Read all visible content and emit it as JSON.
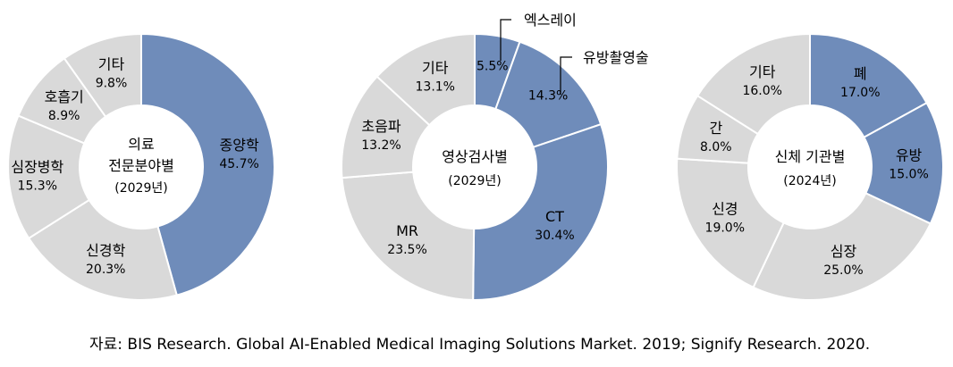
{
  "colors": {
    "highlight": "#6f8cba",
    "other": "#d9d9d9",
    "separator": "#ffffff"
  },
  "chart_data": [
    {
      "type": "pie",
      "variant": "donut",
      "title": [
        "의료",
        "전문분야별",
        "(2029년)"
      ],
      "slices": [
        {
          "label": "종양학",
          "value": 45.7,
          "display": "45.7%",
          "highlight": true
        },
        {
          "label": "신경학",
          "value": 20.3,
          "display": "20.3%",
          "highlight": false
        },
        {
          "label": "심장병학",
          "value": 15.3,
          "display": "15.3%",
          "highlight": false
        },
        {
          "label": "호흡기",
          "value": 8.9,
          "display": "8.9%",
          "highlight": false
        },
        {
          "label": "기타",
          "value": 9.8,
          "display": "9.8%",
          "highlight": false
        }
      ]
    },
    {
      "type": "pie",
      "variant": "donut",
      "title": [
        "영상검사별",
        "(2029년)"
      ],
      "slices": [
        {
          "label": "엑스레이",
          "value": 5.5,
          "display": "5.5%",
          "highlight": true
        },
        {
          "label": "유방촬영술",
          "value": 14.3,
          "display": "14.3%",
          "highlight": true
        },
        {
          "label": "CT",
          "value": 30.4,
          "display": "30.4%",
          "highlight": true
        },
        {
          "label": "MR",
          "value": 23.5,
          "display": "23.5%",
          "highlight": false
        },
        {
          "label": "초음파",
          "value": 13.2,
          "display": "13.2%",
          "highlight": false
        },
        {
          "label": "기타",
          "value": 13.1,
          "display": "13.1%",
          "highlight": false
        }
      ]
    },
    {
      "type": "pie",
      "variant": "donut",
      "title": [
        "신체 기관별",
        "(2024년)"
      ],
      "slices": [
        {
          "label": "폐",
          "value": 17.0,
          "display": "17.0%",
          "highlight": true
        },
        {
          "label": "유방",
          "value": 15.0,
          "display": "15.0%",
          "highlight": true
        },
        {
          "label": "심장",
          "value": 25.0,
          "display": "25.0%",
          "highlight": false
        },
        {
          "label": "신경",
          "value": 19.0,
          "display": "19.0%",
          "highlight": false
        },
        {
          "label": "간",
          "value": 8.0,
          "display": "8.0%",
          "highlight": false
        },
        {
          "label": "기타",
          "value": 16.0,
          "display": "16.0%",
          "highlight": false
        }
      ]
    }
  ],
  "source": "자료: BIS Research. Global AI-Enabled Medical Imaging Solutions Market. 2019; Signify Research. 2020."
}
